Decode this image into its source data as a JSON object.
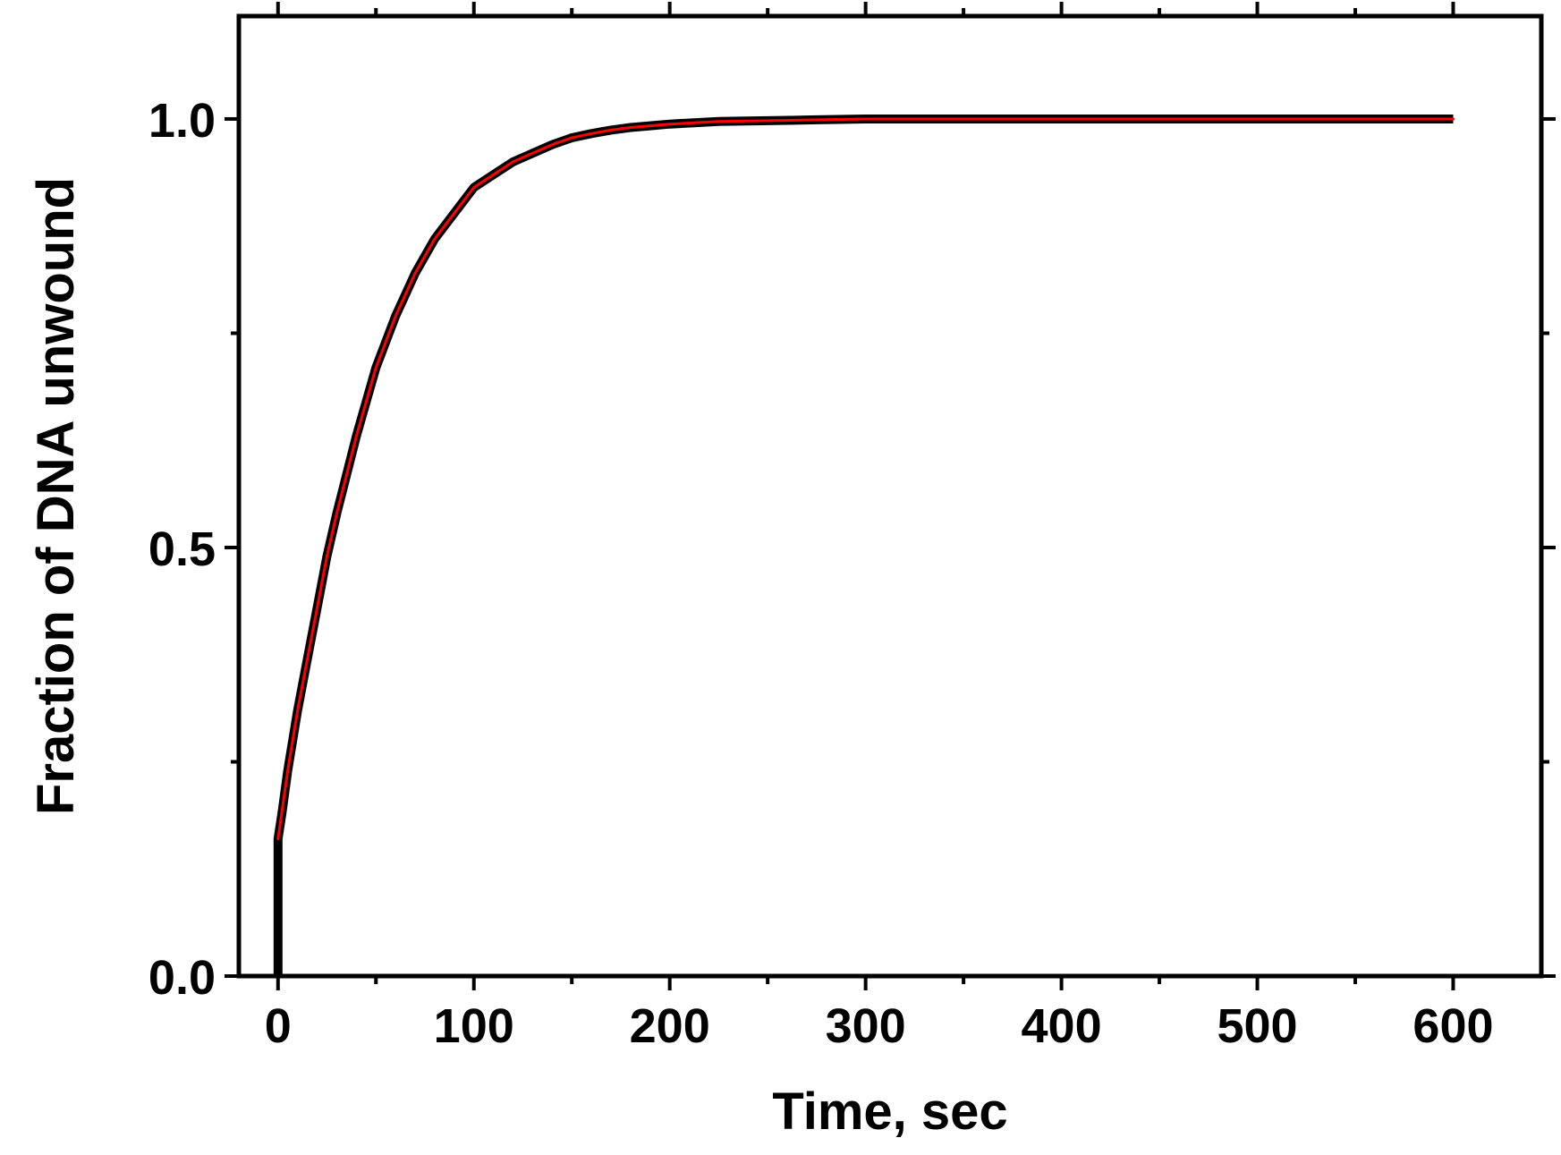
{
  "chart_data": {
    "type": "line",
    "title": "",
    "xlabel": "Time, sec",
    "ylabel": "Fraction of DNA unwound",
    "xlim": [
      -20,
      645
    ],
    "ylim": [
      0,
      1.12
    ],
    "x_ticks": [
      0,
      100,
      200,
      300,
      400,
      500,
      600
    ],
    "x_tick_labels": [
      "0",
      "100",
      "200",
      "300",
      "400",
      "500",
      "600"
    ],
    "x_minor_ticks": [
      50,
      150,
      250,
      350,
      450,
      550
    ],
    "y_ticks": [
      0.0,
      0.5,
      1.0
    ],
    "y_tick_labels": [
      "0.0",
      "0.5",
      "1.0"
    ],
    "y_minor_ticks": [
      0.25,
      0.75
    ],
    "grid": false,
    "legend": "none",
    "series": [
      {
        "kind": "data",
        "color": "#000000",
        "x": [
          0,
          0,
          2,
          5,
          10,
          15,
          20,
          25,
          30,
          40,
          50,
          60,
          70,
          80,
          90,
          100,
          110,
          120,
          130,
          140,
          150,
          160,
          170,
          180,
          190,
          200,
          225,
          250,
          275,
          300,
          350,
          400,
          450,
          500,
          550,
          600
        ],
        "y": [
          0.0,
          0.16,
          0.19,
          0.24,
          0.31,
          0.37,
          0.43,
          0.49,
          0.54,
          0.63,
          0.71,
          0.77,
          0.82,
          0.86,
          0.89,
          0.92,
          0.935,
          0.95,
          0.96,
          0.97,
          0.978,
          0.983,
          0.987,
          0.99,
          0.992,
          0.994,
          0.997,
          0.998,
          0.999,
          1.0,
          1.0,
          1.0,
          1.0,
          1.0,
          1.0,
          1.0
        ]
      },
      {
        "kind": "fit",
        "color": "#ff0000",
        "x": [
          0,
          5,
          10,
          15,
          20,
          25,
          30,
          40,
          50,
          60,
          70,
          80,
          90,
          100,
          110,
          120,
          130,
          140,
          150,
          160,
          170,
          180,
          190,
          200,
          225,
          250,
          275,
          300,
          350,
          400,
          450,
          500,
          550,
          600
        ],
        "y": [
          0.16,
          0.24,
          0.31,
          0.37,
          0.43,
          0.49,
          0.54,
          0.63,
          0.71,
          0.77,
          0.82,
          0.86,
          0.89,
          0.92,
          0.935,
          0.95,
          0.96,
          0.97,
          0.978,
          0.983,
          0.987,
          0.99,
          0.992,
          0.994,
          0.997,
          0.998,
          0.999,
          1.0,
          1.0,
          1.0,
          1.0,
          1.0,
          1.0,
          1.0
        ]
      }
    ],
    "colors": {
      "data": "#000000",
      "fit": "#ff0000",
      "axis": "#000000"
    }
  }
}
